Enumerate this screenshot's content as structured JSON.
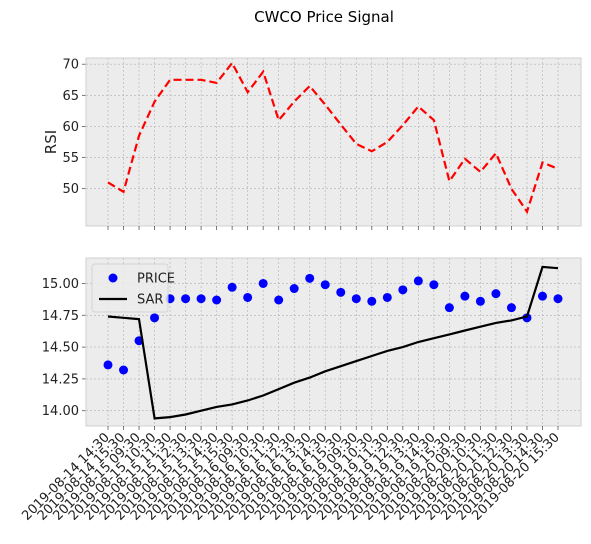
{
  "title": "CWCO Price Signal",
  "x_labels": [
    "2019-08-14 14:30",
    "2019-08-14 15:30",
    "2019-08-15 09:30",
    "2019-08-15 10:30",
    "2019-08-15 11:30",
    "2019-08-15 12:30",
    "2019-08-15 13:30",
    "2019-08-15 14:30",
    "2019-08-15 15:30",
    "2019-08-16 09:30",
    "2019-08-16 10:30",
    "2019-08-16 11:30",
    "2019-08-16 12:30",
    "2019-08-16 13:30",
    "2019-08-16 14:30",
    "2019-08-16 15:30",
    "2019-08-19 09:30",
    "2019-08-19 10:30",
    "2019-08-19 11:30",
    "2019-08-19 12:30",
    "2019-08-19 13:30",
    "2019-08-19 14:30",
    "2019-08-19 15:30",
    "2019-08-20 09:30",
    "2019-08-20 10:30",
    "2019-08-20 11:30",
    "2019-08-20 12:30",
    "2019-08-20 13:30",
    "2019-08-20 14:30",
    "2019-08-20 15:30"
  ],
  "chart_data": [
    {
      "type": "line",
      "ylabel": "RSI",
      "ylim": [
        44,
        71
      ],
      "yticks": [
        "50",
        "55",
        "60",
        "65",
        "70"
      ],
      "grid": true,
      "series": [
        {
          "color": "#ff0000",
          "style": "dashed",
          "values": [
            51.0,
            49.5,
            58.5,
            64.0,
            67.5,
            67.5,
            67.5,
            67.0,
            70.2,
            65.5,
            68.8,
            61.0,
            64.0,
            66.5,
            63.5,
            60.3,
            57.2,
            56.0,
            57.5,
            60.2,
            63.2,
            61.0,
            51.2,
            54.8,
            52.7,
            55.7,
            50.0,
            46.3,
            54.2,
            53.2
          ]
        }
      ]
    },
    {
      "type": "line",
      "ylim": [
        13.88,
        15.2
      ],
      "yticks": [
        "14.00",
        "14.25",
        "14.50",
        "14.75",
        "15.00"
      ],
      "grid": true,
      "legend": "top-left",
      "series": [
        {
          "name": "PRICE",
          "color": "#0000ff",
          "style": "markers",
          "values": [
            14.36,
            14.32,
            14.55,
            14.73,
            14.88,
            14.88,
            14.88,
            14.87,
            14.97,
            14.89,
            15.0,
            14.87,
            14.96,
            15.04,
            14.99,
            14.93,
            14.88,
            14.86,
            14.89,
            14.95,
            15.02,
            14.99,
            14.81,
            14.9,
            14.86,
            14.92,
            14.81,
            14.73,
            14.9,
            14.88
          ]
        },
        {
          "name": "SAR",
          "color": "#000000",
          "style": "solid",
          "values": [
            14.74,
            14.73,
            14.72,
            13.94,
            13.95,
            13.97,
            14.0,
            14.03,
            14.05,
            14.08,
            14.12,
            14.17,
            14.22,
            14.26,
            14.31,
            14.35,
            14.39,
            14.43,
            14.47,
            14.5,
            14.54,
            14.57,
            14.6,
            14.63,
            14.66,
            14.69,
            14.71,
            14.74,
            15.13,
            15.12
          ]
        }
      ]
    }
  ]
}
